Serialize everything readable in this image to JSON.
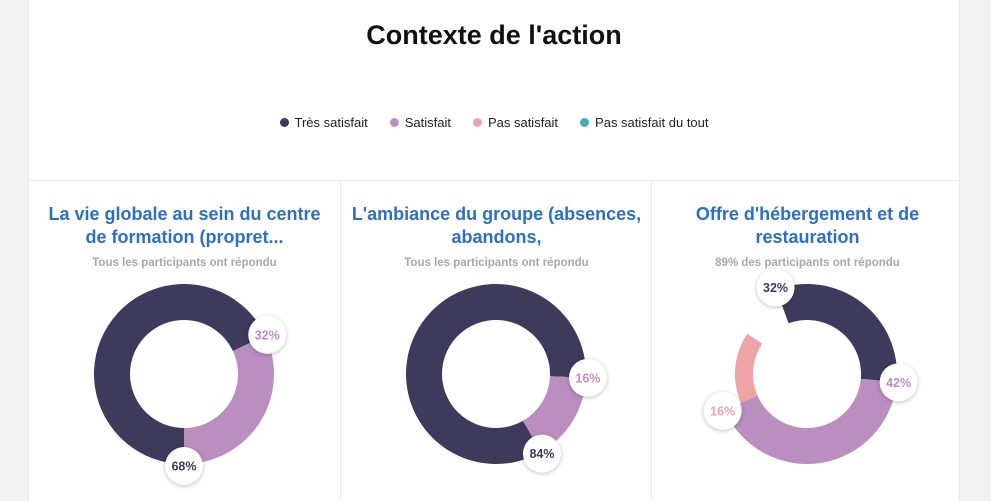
{
  "title": "Contexte de l'action",
  "legend": [
    {
      "label": "Très satisfait",
      "color": "#3d3a5c"
    },
    {
      "label": "Satisfait",
      "color": "#bb8ec0"
    },
    {
      "label": "Pas satisfait",
      "color": "#eea3a6"
    },
    {
      "label": "Pas satisfait du tout",
      "color": "#3fb1b0"
    }
  ],
  "chart_data": [
    {
      "type": "pie",
      "title": "La vie globale au sein du centre de formation (propret...",
      "subtitle": "Tous les participants ont répondu",
      "slices": [
        {
          "category": "Très satisfait",
          "value": 68,
          "label": "68%"
        },
        {
          "category": "Satisfait",
          "value": 32,
          "label": "32%"
        }
      ]
    },
    {
      "type": "pie",
      "title": "L'ambiance du groupe (absences, abandons,",
      "subtitle": "Tous les participants ont répondu",
      "slices": [
        {
          "category": "Très satisfait",
          "value": 84,
          "label": "84%"
        },
        {
          "category": "Satisfait",
          "value": 16,
          "label": "16%"
        }
      ]
    },
    {
      "type": "pie",
      "title": "Offre d'hébergement et de restauration",
      "subtitle": "89% des participants ont répondu",
      "slices": [
        {
          "category": "Très satisfait",
          "value": 32,
          "label": "32%"
        },
        {
          "category": "Satisfait",
          "value": 42,
          "label": "42%"
        },
        {
          "category": "Pas satisfait",
          "value": 16,
          "label": "16%"
        }
      ]
    }
  ]
}
